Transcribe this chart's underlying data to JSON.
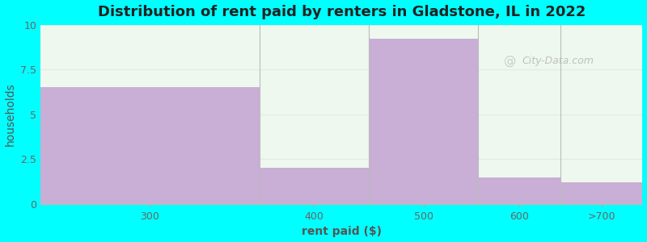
{
  "title": "Distribution of rent paid by renters in Gladstone, IL in 2022",
  "xlabel": "rent paid ($)",
  "ylabel": "households",
  "bar_lefts": [
    0,
    2,
    3,
    4,
    4.75
  ],
  "bar_widths": [
    2,
    1,
    1,
    0.75,
    0.75
  ],
  "values": [
    6.5,
    2.0,
    9.2,
    1.5,
    1.2
  ],
  "bar_color": "#c9aed6",
  "background_color": "#00ffff",
  "plot_bg_color": "#eef8ee",
  "ylim": [
    0,
    10
  ],
  "yticks": [
    0,
    2.5,
    5,
    7.5,
    10
  ],
  "xtick_positions": [
    1,
    2.5,
    3.5,
    4.375,
    5.125
  ],
  "xtick_labels": [
    "300",
    "400",
    "500",
    "600",
    ">700"
  ],
  "xlim": [
    0,
    5.5
  ],
  "title_fontsize": 13,
  "axis_label_fontsize": 10,
  "tick_fontsize": 9,
  "watermark_text": "City-Data.com",
  "grid_color": "#ddeedd",
  "grid_linewidth": 0.8
}
